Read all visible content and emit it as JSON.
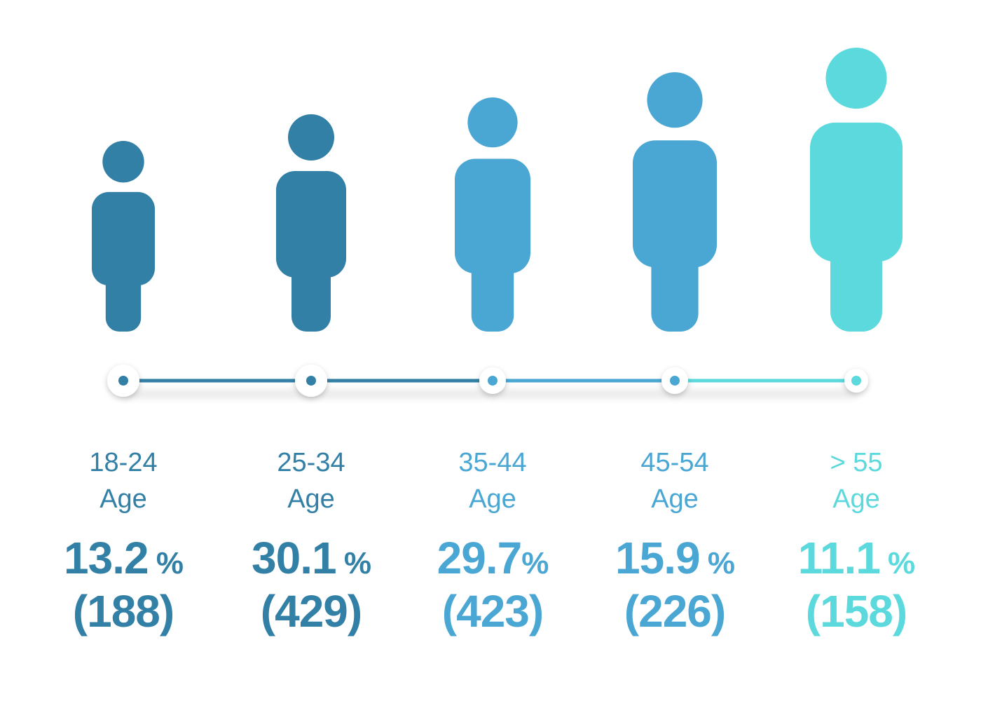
{
  "chart_data": {
    "type": "bar",
    "categories": [
      "18-24",
      "25-34",
      "35-44",
      "45-54",
      "> 55"
    ],
    "category_suffix": "Age",
    "values": [
      13.2,
      30.1,
      29.7,
      15.9,
      11.1
    ],
    "value_unit": "%",
    "counts": [
      "(188)",
      "(429)",
      "(423)",
      "(226)",
      "(158)"
    ],
    "colors": [
      "#3380a6",
      "#3380a6",
      "#4aa7d4",
      "#4aa7d4",
      "#5cd9dc"
    ],
    "connector_colors": [
      "#3380a6",
      "#3380a6",
      "#4aa7d4",
      "#5cd9dc"
    ]
  },
  "groups": [
    {
      "range": "18-24",
      "word": "Age",
      "pct": "13.2",
      "unit": "%",
      "count": "(188)"
    },
    {
      "range": "25-34",
      "word": "Age",
      "pct": "30.1",
      "unit": "%",
      "count": "(429)"
    },
    {
      "range": "35-44",
      "word": "Age",
      "pct": "29.7",
      "unit": "%",
      "count": "(423)"
    },
    {
      "range": "45-54",
      "word": "Age",
      "pct": "15.9",
      "unit": "%",
      "count": "(226)"
    },
    {
      "range": "> 55",
      "word": "Age",
      "pct": "11.1",
      "unit": "%",
      "count": "(158)"
    }
  ]
}
